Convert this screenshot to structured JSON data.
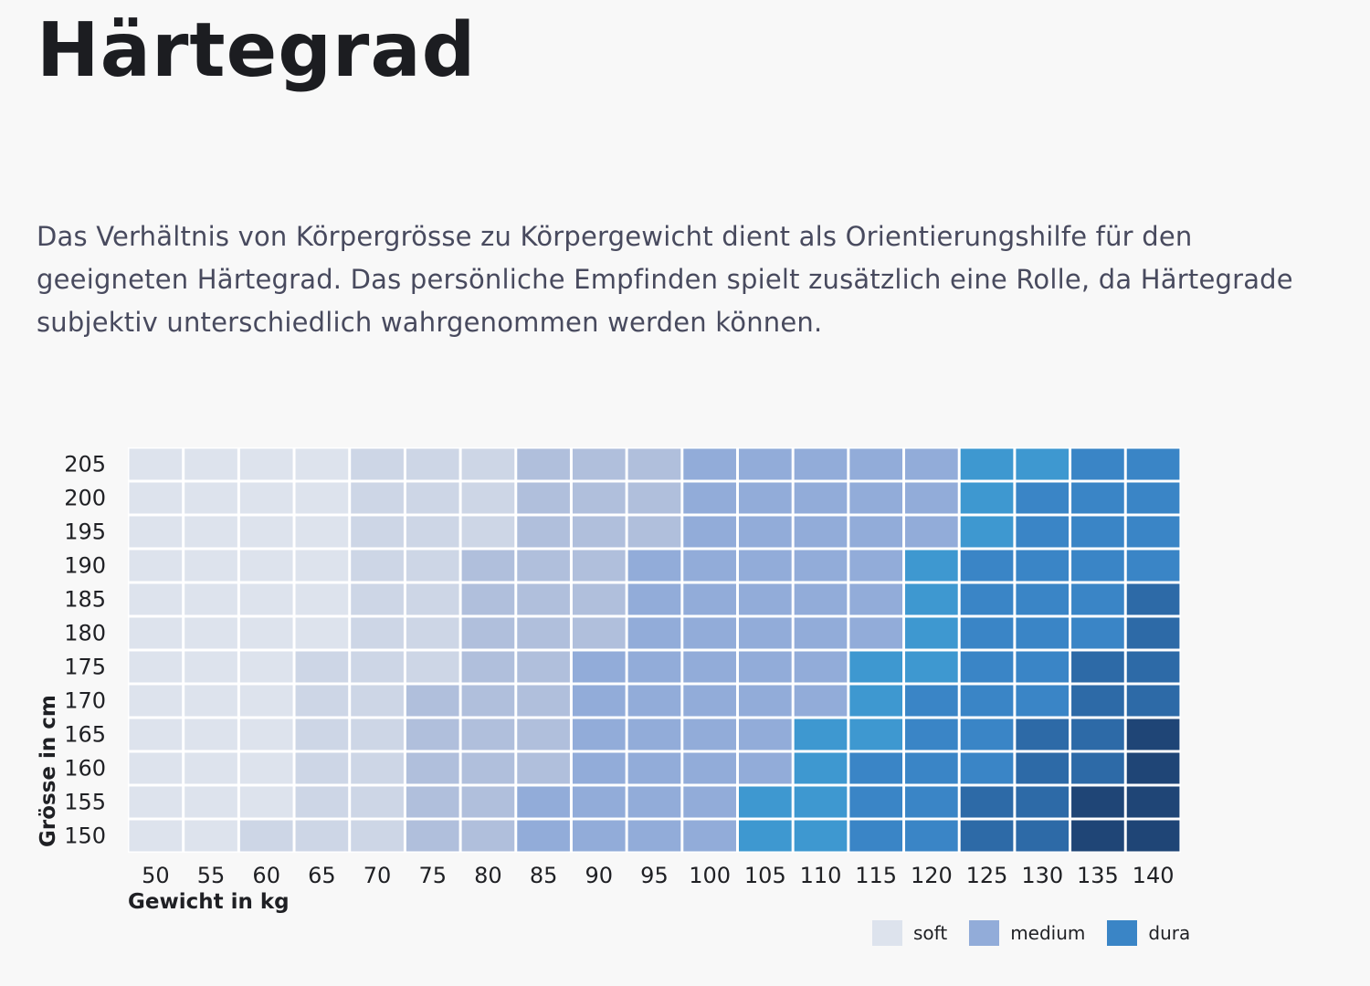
{
  "page": {
    "title": "Härtegrad",
    "intro": "Das Verhältnis von Körpergrösse zu Körpergewicht dient als Orientierungshilfe für den geeigneten Härtegrad. Das persönliche Empfinden spielt zusätzlich eine Rolle, da Härtegrade subjektiv unterschiedlich wahrgenommen werden können."
  },
  "legend": [
    {
      "label": "soft",
      "color": "#dde3ed"
    },
    {
      "label": "medium",
      "color": "#92acd9"
    },
    {
      "label": "dura",
      "color": "#3a85c6"
    }
  ],
  "chart_data": {
    "type": "heatmap",
    "xlabel": "Gewicht in kg",
    "ylabel": "Grösse in cm",
    "x": [
      "50",
      "55",
      "60",
      "65",
      "70",
      "75",
      "80",
      "85",
      "90",
      "95",
      "100",
      "105",
      "110",
      "115",
      "120",
      "125",
      "130",
      "135",
      "140"
    ],
    "y": [
      "205",
      "200",
      "195",
      "190",
      "185",
      "180",
      "175",
      "170",
      "165",
      "160",
      "155",
      "150"
    ],
    "colors": [
      "#dde3ed",
      "#cdd6e6",
      "#b0bfdc",
      "#92acd9",
      "#3e98d0",
      "#3a85c6",
      "#2d6aa7",
      "#1f4576"
    ],
    "values": [
      [
        0,
        0,
        0,
        0,
        1,
        1,
        1,
        2,
        2,
        2,
        3,
        3,
        3,
        3,
        3,
        4,
        4,
        5,
        5
      ],
      [
        0,
        0,
        0,
        0,
        1,
        1,
        1,
        2,
        2,
        2,
        3,
        3,
        3,
        3,
        3,
        4,
        5,
        5,
        5
      ],
      [
        0,
        0,
        0,
        0,
        1,
        1,
        1,
        2,
        2,
        2,
        3,
        3,
        3,
        3,
        3,
        4,
        5,
        5,
        5
      ],
      [
        0,
        0,
        0,
        0,
        1,
        1,
        2,
        2,
        2,
        3,
        3,
        3,
        3,
        3,
        4,
        5,
        5,
        5,
        5
      ],
      [
        0,
        0,
        0,
        0,
        1,
        1,
        2,
        2,
        2,
        3,
        3,
        3,
        3,
        3,
        4,
        5,
        5,
        5,
        6
      ],
      [
        0,
        0,
        0,
        0,
        1,
        1,
        2,
        2,
        2,
        3,
        3,
        3,
        3,
        3,
        4,
        5,
        5,
        5,
        6
      ],
      [
        0,
        0,
        0,
        1,
        1,
        1,
        2,
        2,
        3,
        3,
        3,
        3,
        3,
        4,
        4,
        5,
        5,
        6,
        6
      ],
      [
        0,
        0,
        0,
        1,
        1,
        2,
        2,
        2,
        3,
        3,
        3,
        3,
        3,
        4,
        5,
        5,
        5,
        6,
        6
      ],
      [
        0,
        0,
        0,
        1,
        1,
        2,
        2,
        2,
        3,
        3,
        3,
        3,
        4,
        4,
        5,
        5,
        6,
        6,
        7
      ],
      [
        0,
        0,
        0,
        1,
        1,
        2,
        2,
        2,
        3,
        3,
        3,
        3,
        4,
        5,
        5,
        5,
        6,
        6,
        7
      ],
      [
        0,
        0,
        0,
        1,
        1,
        2,
        2,
        3,
        3,
        3,
        3,
        4,
        4,
        5,
        5,
        6,
        6,
        7,
        7
      ],
      [
        0,
        0,
        1,
        1,
        1,
        2,
        2,
        3,
        3,
        3,
        3,
        4,
        4,
        5,
        5,
        6,
        6,
        7,
        7
      ]
    ]
  }
}
